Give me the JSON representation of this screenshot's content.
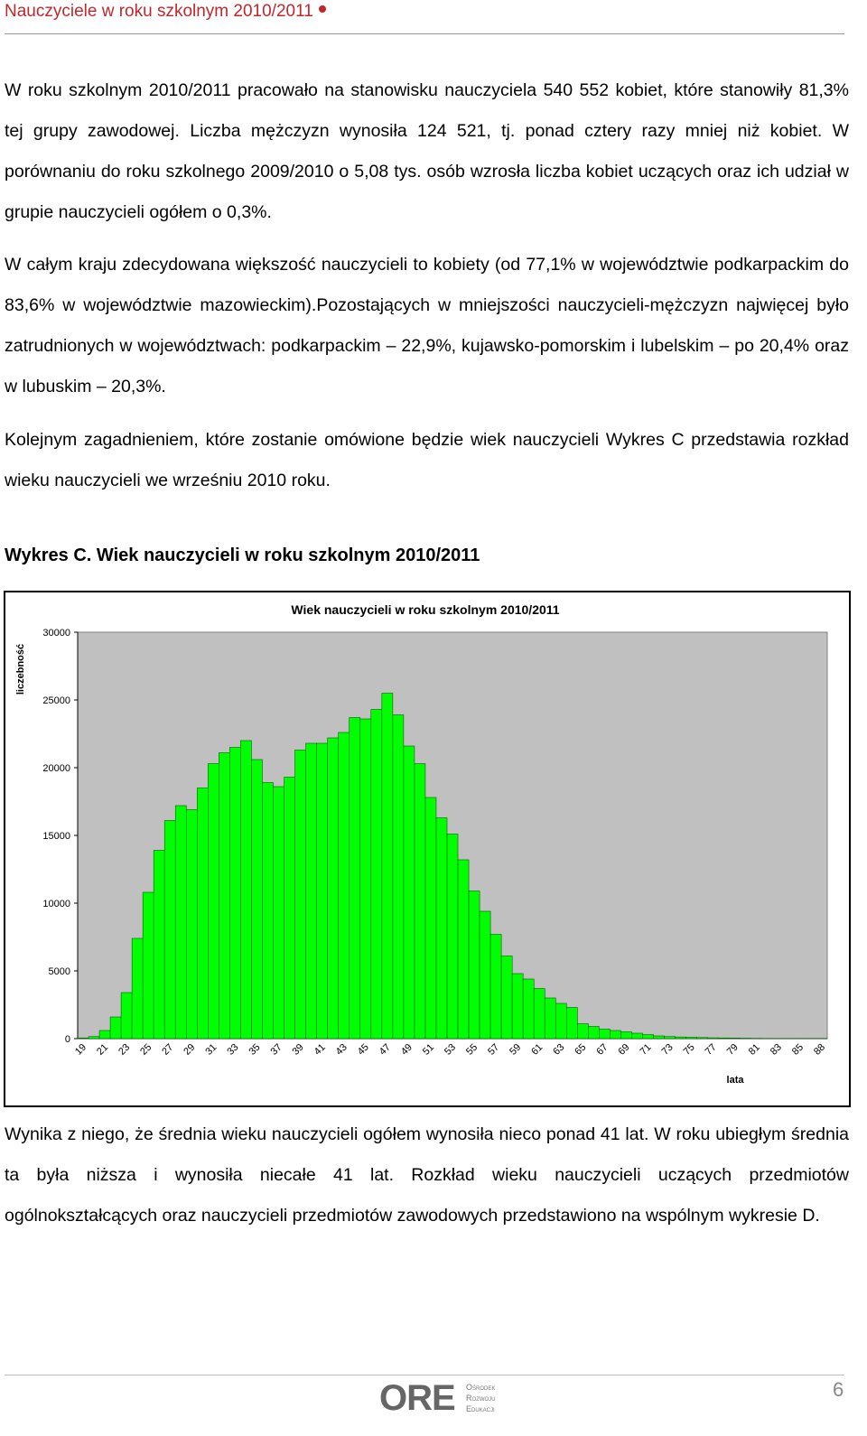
{
  "header": {
    "title": "Nauczyciele w roku szkolnym 2010/2011"
  },
  "paragraphs": [
    "W roku szkolnym 2010/2011 pracowało na stanowisku nauczyciela 540 552 kobiet, które stanowiły 81,3% tej grupy zawodowej. Liczba mężczyzn wynosiła 124 521, tj. ponad cztery razy mniej niż kobiet. W porównaniu do roku szkolnego 2009/2010 o 5,08 tys. osób wzrosła liczba kobiet uczących oraz ich udział w grupie nauczycieli ogółem o 0,3%.",
    "W całym kraju zdecydowana większość nauczycieli to kobiety (od 77,1% w województwie podkarpackim do 83,6% w województwie mazowieckim).Pozostających w mniejszości nauczycieli-mężczyzn najwięcej było zatrudnionych w województwach: podkarpackim – 22,9%, kujawsko-pomorskim i lubelskim – po 20,4% oraz w lubuskim – 20,3%.",
    "Kolejnym zagadnieniem, które zostanie omówione będzie wiek nauczycieli Wykres C przedstawia rozkład wieku nauczycieli we wrześniu 2010 roku."
  ],
  "figure_caption": "Wykres C. Wiek nauczycieli w roku szkolnym 2010/2011",
  "chart_data": {
    "type": "bar",
    "title": "Wiek nauczycieli w roku szkolnym 2010/2011",
    "y_label": "liczebność",
    "x_label": "lata",
    "categories": [
      "19",
      null,
      "21",
      null,
      "23",
      null,
      "25",
      null,
      "27",
      null,
      "29",
      null,
      "31",
      null,
      "33",
      null,
      "35",
      null,
      "37",
      null,
      "39",
      null,
      "41",
      null,
      "43",
      null,
      "45",
      null,
      "47",
      null,
      "49",
      null,
      "51",
      null,
      "53",
      null,
      "55",
      null,
      "57",
      null,
      "59",
      null,
      "61",
      null,
      "63",
      null,
      "65",
      null,
      "67",
      null,
      "69",
      null,
      "71",
      null,
      "73",
      null,
      "75",
      null,
      "77",
      null,
      "79",
      null,
      "81",
      null,
      "83",
      null,
      "85",
      null,
      "88"
    ],
    "values": [
      50,
      150,
      600,
      1600,
      3400,
      7400,
      10800,
      13900,
      16100,
      17200,
      16900,
      18500,
      20300,
      21100,
      21500,
      22000,
      20600,
      18900,
      18600,
      19300,
      21300,
      21800,
      21800,
      22200,
      22600,
      23700,
      23600,
      24300,
      25500,
      23900,
      21600,
      20300,
      17800,
      16300,
      15100,
      13200,
      10900,
      9400,
      7700,
      6100,
      4800,
      4400,
      3700,
      3000,
      2600,
      2300,
      1100,
      900,
      700,
      600,
      500,
      400,
      300,
      200,
      150,
      120,
      100,
      80,
      60,
      50,
      40,
      30,
      20,
      15,
      10,
      10,
      5,
      5,
      5
    ],
    "color": "#00ff00",
    "ylim": [
      0,
      30000
    ],
    "yticks": [
      0,
      5000,
      10000,
      15000,
      20000,
      25000,
      30000
    ],
    "grid": false,
    "plot_background": "#c0c0c0"
  },
  "closing_paragraph": "Wynika z niego, że średnia wieku nauczycieli ogółem wynosiła nieco ponad 41 lat. W roku ubiegłym średnia ta była niższa i wynosiła niecałe 41 lat. Rozkład wieku nauczycieli uczących przedmiotów ogólnokształcących oraz nauczycieli przedmiotów zawodowych przedstawiono na wspólnym wykresie D.",
  "footer": {
    "logo": "ORE",
    "logo_subtitle": [
      "Ośrodek",
      "Rozwoju",
      "Edukacji"
    ],
    "page_number": 6
  }
}
